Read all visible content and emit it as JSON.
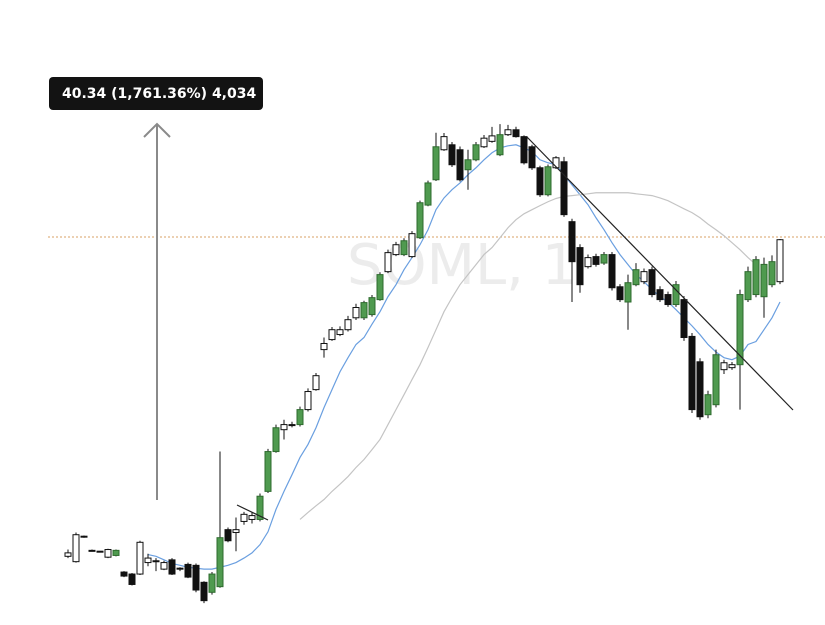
{
  "chart_data": {
    "type": "candlestick",
    "watermark": "SOML, 1",
    "annotation": "40.34 (1,761.36%) 4,034",
    "log_scale": true,
    "ylim": [
      0.86,
      113
    ],
    "candles": {
      "open": [
        1.47,
        1.41,
        1.71,
        1.54,
        1.52,
        1.46,
        1.48,
        1.3,
        1.28,
        1.28,
        1.4,
        1.42,
        1.33,
        1.43,
        1.33,
        1.38,
        1.37,
        1.2,
        1.11,
        1.16,
        1.81,
        1.77,
        1.93,
        1.96,
        1.96,
        2.44,
        3.33,
        3.95,
        4.1,
        4.11,
        4.62,
        5.4,
        7.38,
        7.98,
        8.3,
        8.62,
        9.46,
        9.46,
        9.7,
        10.9,
        13.56,
        15.49,
        15.49,
        15.25,
        17.67,
        22.8,
        27.78,
        35.11,
        36.5,
        35.11,
        30.04,
        32.47,
        35.94,
        37.49,
        33.77,
        39.5,
        41.04,
        38.9,
        35.94,
        30.51,
        24.72,
        30.51,
        31.97,
        20.03,
        16.36,
        14.1,
        15.25,
        14.5,
        15.49,
        12.05,
        10.7,
        12.25,
        12.54,
        13.77,
        11.78,
        11.34,
        10.49,
        10.9,
        8.18,
        6.71,
        4.44,
        4.8,
        6.31,
        6.41,
        6.56,
        10.9,
        11.34,
        11.15,
        12.25,
        12.54
      ],
      "high": [
        1.55,
        1.77,
        1.73,
        1.55,
        1.53,
        1.56,
        1.55,
        1.31,
        1.29,
        1.66,
        1.5,
        1.45,
        1.42,
        1.45,
        1.35,
        1.4,
        1.39,
        1.21,
        1.3,
        3.33,
        1.84,
        1.99,
        2.08,
        2.07,
        2.4,
        3.4,
        4.11,
        4.27,
        4.2,
        4.73,
        5.45,
        6.15,
        8.11,
        8.8,
        8.85,
        9.6,
        10.55,
        10.8,
        11.3,
        13.5,
        16.1,
        17.1,
        17.6,
        18.6,
        23.6,
        27.6,
        40.1,
        40.0,
        37.3,
        36.0,
        35.11,
        37.3,
        39.4,
        41.99,
        42.9,
        42.63,
        42.0,
        39.3,
        36.5,
        31.0,
        31.3,
        33.4,
        33.2,
        20.5,
        16.8,
        15.5,
        15.6,
        15.8,
        15.8,
        12.3,
        13.25,
        14.5,
        13.9,
        14.1,
        12.1,
        11.6,
        12.6,
        11.2,
        8.4,
        6.9,
        5.35,
        7.38,
        6.82,
        6.7,
        11.78,
        14.1,
        15.3,
        15.13,
        15.4,
        17.5
      ],
      "low": [
        1.45,
        1.4,
        1.7,
        1.53,
        1.52,
        1.45,
        1.47,
        1.25,
        1.17,
        1.27,
        1.36,
        1.31,
        1.32,
        1.27,
        1.31,
        1.24,
        1.11,
        1.02,
        1.09,
        1.15,
        1.64,
        1.53,
        1.88,
        1.9,
        1.93,
        2.41,
        3.3,
        3.66,
        4.02,
        4.05,
        4.55,
        5.35,
        6.93,
        7.9,
        8.2,
        8.5,
        9.3,
        9.3,
        9.55,
        10.8,
        13.4,
        15.3,
        15.3,
        15.1,
        17.5,
        22.6,
        27.5,
        34.8,
        30.7,
        27.4,
        25.7,
        32.1,
        35.6,
        37.1,
        33.4,
        39.1,
        38.6,
        31.3,
        30.0,
        24.3,
        24.4,
        30.2,
        20.8,
        10.7,
        11.5,
        13.9,
        14.1,
        14.3,
        11.7,
        10.7,
        8.62,
        12.1,
        12.3,
        11.1,
        10.7,
        10.3,
        10.3,
        7.9,
        4.5,
        4.27,
        4.32,
        4.7,
        6.1,
        6.3,
        4.62,
        10.7,
        11.1,
        9.46,
        12.0,
        12.3
      ],
      "close": [
        1.51,
        1.74,
        1.72,
        1.54,
        1.53,
        1.55,
        1.54,
        1.26,
        1.18,
        1.64,
        1.45,
        1.41,
        1.4,
        1.28,
        1.34,
        1.25,
        1.13,
        1.04,
        1.28,
        1.7,
        1.66,
        1.81,
        2.04,
        2.02,
        2.35,
        3.33,
        4.01,
        4.11,
        4.11,
        4.62,
        5.32,
        6.02,
        7.74,
        8.62,
        8.62,
        9.32,
        10.25,
        10.65,
        11.07,
        13.25,
        15.73,
        16.73,
        17.26,
        18.24,
        23.22,
        27.1,
        35.94,
        38.9,
        31.24,
        27.78,
        32.47,
        36.5,
        38.43,
        39.13,
        39.5,
        41.04,
        38.9,
        31.72,
        30.51,
        24.72,
        30.75,
        32.98,
        21.16,
        14.66,
        12.25,
        15.13,
        14.35,
        15.49,
        11.96,
        10.9,
        12.44,
        13.77,
        13.56,
        11.34,
        10.9,
        10.49,
        12.25,
        8.11,
        4.62,
        4.37,
        5.19,
        7.09,
        6.66,
        6.56,
        11.34,
        13.56,
        14.89,
        14.35,
        14.66,
        17.4
      ],
      "colors": [
        "#ffffff",
        "#ffffff",
        "#ffffff",
        "#ffffff",
        "#ffffff",
        "#ffffff",
        "#4f9a4f",
        "#111111",
        "#111111",
        "#ffffff",
        "#ffffff",
        "#ffffff",
        "#ffffff",
        "#111111",
        "#ffffff",
        "#111111",
        "#111111",
        "#111111",
        "#4f9a4f",
        "#4f9a4f",
        "#111111",
        "#ffffff",
        "#ffffff",
        "#ffffff",
        "#4f9a4f",
        "#4f9a4f",
        "#4f9a4f",
        "#ffffff",
        "#ffffff",
        "#4f9a4f",
        "#ffffff",
        "#ffffff",
        "#ffffff",
        "#ffffff",
        "#ffffff",
        "#ffffff",
        "#ffffff",
        "#4f9a4f",
        "#4f9a4f",
        "#4f9a4f",
        "#ffffff",
        "#ffffff",
        "#4f9a4f",
        "#ffffff",
        "#4f9a4f",
        "#4f9a4f",
        "#4f9a4f",
        "#ffffff",
        "#111111",
        "#111111",
        "#4f9a4f",
        "#4f9a4f",
        "#ffffff",
        "#ffffff",
        "#4f9a4f",
        "#ffffff",
        "#111111",
        "#111111",
        "#111111",
        "#111111",
        "#4f9a4f",
        "#ffffff",
        "#111111",
        "#111111",
        "#111111",
        "#ffffff",
        "#111111",
        "#4f9a4f",
        "#111111",
        "#111111",
        "#4f9a4f",
        "#4f9a4f",
        "#ffffff",
        "#111111",
        "#111111",
        "#111111",
        "#4f9a4f",
        "#111111",
        "#111111",
        "#111111",
        "#4f9a4f",
        "#4f9a4f",
        "#ffffff",
        "#ffffff",
        "#4f9a4f",
        "#4f9a4f",
        "#4f9a4f",
        "#4f9a4f",
        "#4f9a4f",
        "#ffffff"
      ]
    },
    "series": [
      {
        "color": "#6a9fe0",
        "values": [
          null,
          null,
          null,
          null,
          null,
          null,
          null,
          null,
          null,
          null,
          1.49,
          1.47,
          1.43,
          1.39,
          1.37,
          1.35,
          1.34,
          1.33,
          1.33,
          1.35,
          1.37,
          1.4,
          1.45,
          1.51,
          1.61,
          1.78,
          2.12,
          2.44,
          2.78,
          3.18,
          3.52,
          4.01,
          4.69,
          5.4,
          6.21,
          6.93,
          7.68,
          8.11,
          9.0,
          9.92,
          11.16,
          12.25,
          13.77,
          15.13,
          16.73,
          18.81,
          21.99,
          24.1,
          25.7,
          27.1,
          28.9,
          30.51,
          32.47,
          34.3,
          35.6,
          36.2,
          36.5,
          35.6,
          34.6,
          32.47,
          31.72,
          31.24,
          28.9,
          26.7,
          24.72,
          22.86,
          20.65,
          18.81,
          17.0,
          15.49,
          14.32,
          13.25,
          12.54,
          11.78,
          11.16,
          10.7,
          10.08,
          9.46,
          8.88,
          8.29,
          7.68,
          7.24,
          6.93,
          6.82,
          7.02,
          7.68,
          7.86,
          8.62,
          9.46,
          10.7
        ]
      },
      {
        "color": "#c4c4c4",
        "values": [
          null,
          null,
          null,
          null,
          null,
          null,
          null,
          null,
          null,
          null,
          null,
          null,
          null,
          null,
          null,
          null,
          null,
          null,
          null,
          null,
          null,
          null,
          null,
          null,
          null,
          null,
          null,
          null,
          null,
          1.96,
          2.07,
          2.18,
          2.29,
          2.44,
          2.58,
          2.74,
          2.94,
          3.13,
          3.38,
          3.66,
          4.11,
          4.62,
          5.19,
          5.84,
          6.56,
          7.5,
          8.62,
          9.92,
          11.07,
          12.25,
          13.25,
          14.32,
          15.49,
          16.36,
          17.67,
          19.1,
          20.34,
          21.3,
          21.99,
          22.7,
          23.4,
          24.0,
          24.4,
          24.55,
          24.72,
          24.9,
          25.1,
          25.1,
          25.1,
          25.1,
          25.1,
          24.9,
          24.72,
          24.55,
          24.1,
          23.6,
          22.86,
          22.15,
          21.5,
          20.65,
          19.65,
          18.81,
          17.95,
          17.0,
          16.1,
          15.13,
          14.32,
          null,
          null,
          null
        ]
      }
    ]
  }
}
